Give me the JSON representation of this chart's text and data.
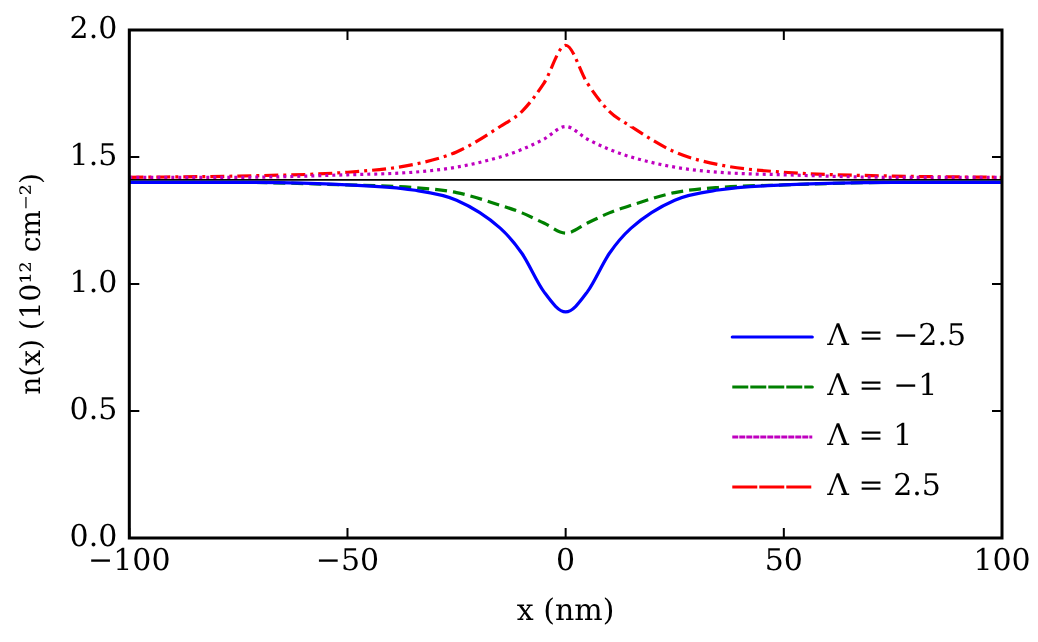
{
  "chart_data": {
    "type": "line",
    "xlabel": "x (nm)",
    "ylabel": "n(x) (10¹² cm⁻²)",
    "xlim": [
      -100,
      100
    ],
    "xticks": [
      -100,
      -50,
      0,
      50,
      100
    ],
    "ylim": [
      0,
      2.0
    ],
    "yticks": [
      {
        "value": 0,
        "label": "0.0"
      },
      {
        "value": 0.5,
        "label": "0.5"
      },
      {
        "value": 1,
        "label": "1.0"
      },
      {
        "value": 1.5,
        "label": "1.5"
      },
      {
        "value": 2,
        "label": "2.0"
      }
    ],
    "x": [
      -100,
      -75,
      -50,
      -35,
      -25,
      -15,
      -10,
      -5,
      0,
      5,
      10,
      15,
      25,
      35,
      50,
      75,
      100
    ],
    "series": [
      {
        "name": "Λ = −2.5",
        "color": "#0000ff",
        "line_style": "solid",
        "values": [
          1.4,
          1.4,
          1.39,
          1.37,
          1.33,
          1.22,
          1.12,
          0.97,
          0.89,
          0.97,
          1.12,
          1.22,
          1.33,
          1.37,
          1.39,
          1.4,
          1.4
        ]
      },
      {
        "name": "Λ = −1",
        "color": "#008000",
        "line_style": "dashed",
        "values": [
          1.4,
          1.4,
          1.39,
          1.38,
          1.36,
          1.31,
          1.28,
          1.24,
          1.2,
          1.24,
          1.28,
          1.31,
          1.36,
          1.38,
          1.39,
          1.4,
          1.4
        ]
      },
      {
        "name": "Λ = 1",
        "color": "#bf00bf",
        "line_style": "dotted",
        "values": [
          1.42,
          1.42,
          1.43,
          1.44,
          1.46,
          1.5,
          1.53,
          1.57,
          1.62,
          1.57,
          1.53,
          1.5,
          1.46,
          1.44,
          1.43,
          1.42,
          1.42
        ]
      },
      {
        "name": "Λ = 2.5",
        "color": "#ff0000",
        "line_style": "dashdot",
        "values": [
          1.42,
          1.425,
          1.44,
          1.47,
          1.52,
          1.62,
          1.68,
          1.79,
          1.94,
          1.79,
          1.68,
          1.62,
          1.52,
          1.47,
          1.44,
          1.425,
          1.42
        ]
      }
    ],
    "ref_lines": [
      {
        "axis": "y",
        "value": 1.41,
        "color": "#000000"
      }
    ],
    "grid": false,
    "legend": "bottom right",
    "marker": "none"
  }
}
